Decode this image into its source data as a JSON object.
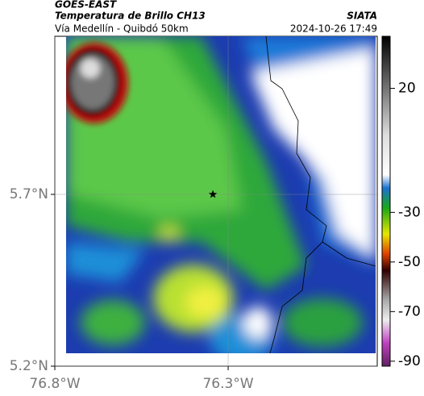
{
  "header": {
    "source": "GOES-EAST",
    "title": "Temperatura de Brillo CH13",
    "subtitle": "Vía Medellín - Quibdó 50km",
    "agency": "SIATA",
    "datetime": "2024-10-26 17:49"
  },
  "map": {
    "xlim": [
      -76.8,
      -75.87
    ],
    "ylim": [
      5.2,
      6.16
    ],
    "xticks": [
      {
        "value": -76.8,
        "label": "76.8°W"
      },
      {
        "value": -76.3,
        "label": "76.3°W"
      }
    ],
    "yticks": [
      {
        "value": 5.7,
        "label": "5.7°N"
      },
      {
        "value": 5.2,
        "label": "5.2°N"
      }
    ],
    "grid": true,
    "marker": {
      "lon": -76.344,
      "lat": 5.7
    }
  },
  "colorbar": {
    "lim": [
      -92,
      41
    ],
    "ticks": [
      20,
      -30,
      -50,
      -70,
      -90
    ]
  }
}
